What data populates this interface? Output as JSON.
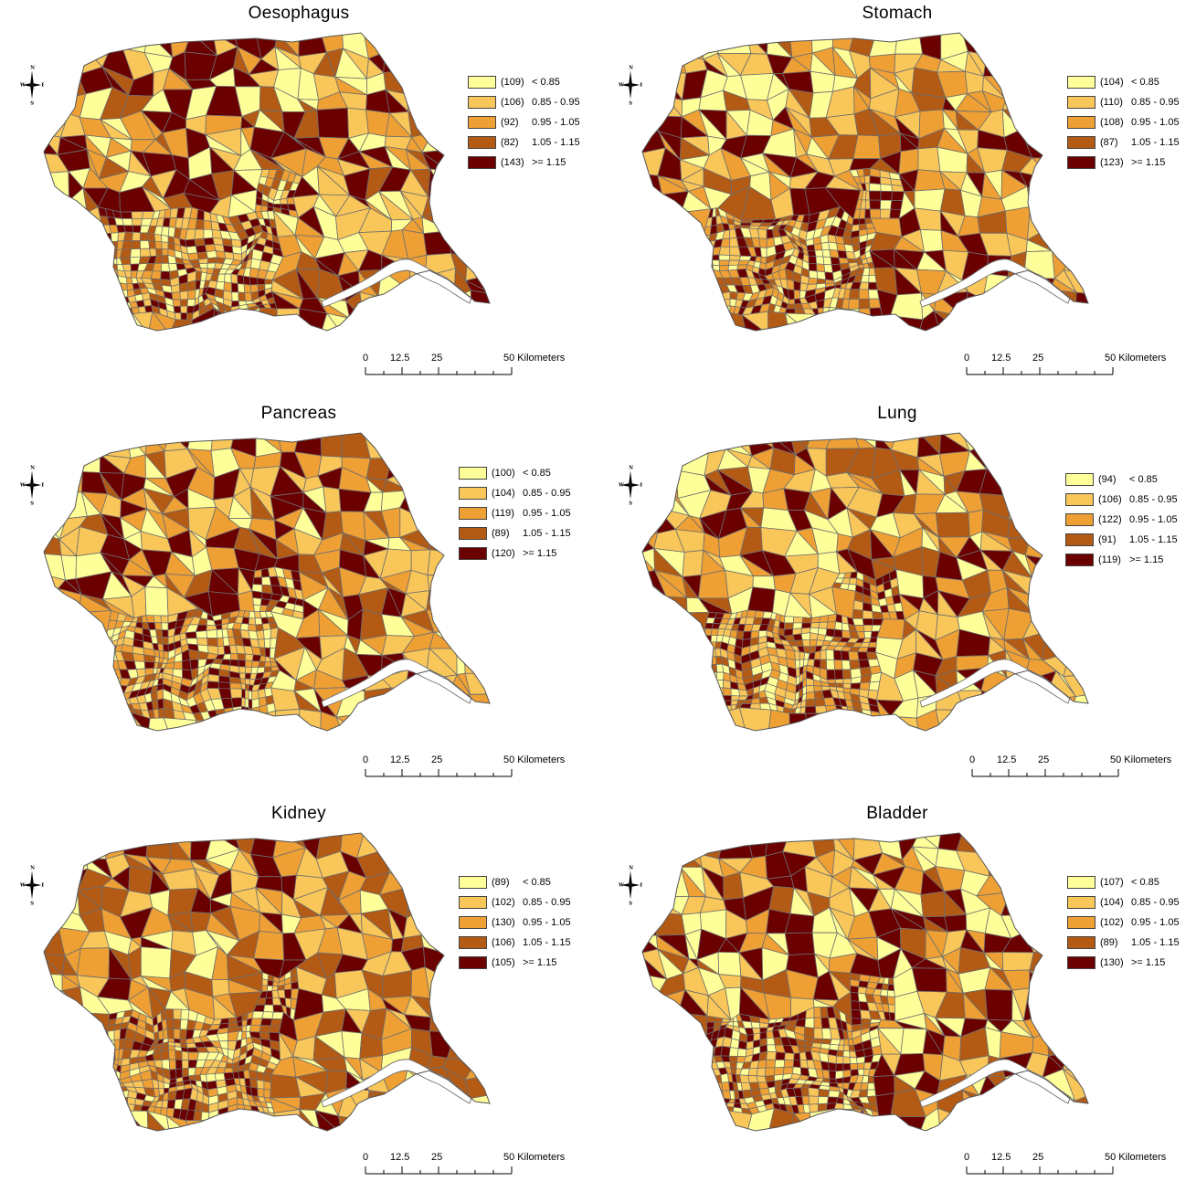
{
  "panels": [
    {
      "title": "Oesophagus",
      "legend": [
        {
          "count": "(109)",
          "range": "< 0.85",
          "color": "#ffff99"
        },
        {
          "count": "(106)",
          "range": "0.85 - 0.95",
          "color": "#f9c65a"
        },
        {
          "count": "(92)",
          "range": "0.95 - 1.05",
          "color": "#eea035"
        },
        {
          "count": "(82)",
          "range": "1.05 - 1.15",
          "color": "#b35a14"
        },
        {
          "count": "(143)",
          "range": ">= 1.15",
          "color": "#6b0000"
        }
      ]
    },
    {
      "title": "Stomach",
      "legend": [
        {
          "count": "(104)",
          "range": "< 0.85",
          "color": "#ffff99"
        },
        {
          "count": "(110)",
          "range": "0.85 - 0.95",
          "color": "#f9c65a"
        },
        {
          "count": "(108)",
          "range": "0.95 - 1.05",
          "color": "#eea035"
        },
        {
          "count": "(87)",
          "range": "1.05 - 1.15",
          "color": "#b35a14"
        },
        {
          "count": "(123)",
          "range": ">= 1.15",
          "color": "#6b0000"
        }
      ]
    },
    {
      "title": "Pancreas",
      "legend": [
        {
          "count": "(100)",
          "range": "< 0.85",
          "color": "#ffff99"
        },
        {
          "count": "(104)",
          "range": "0.85 - 0.95",
          "color": "#f9c65a"
        },
        {
          "count": "(119)",
          "range": "0.95 - 1.05",
          "color": "#eea035"
        },
        {
          "count": "(89)",
          "range": "1.05 - 1.15",
          "color": "#b35a14"
        },
        {
          "count": "(120)",
          "range": ">= 1.15",
          "color": "#6b0000"
        }
      ]
    },
    {
      "title": "Lung",
      "legend": [
        {
          "count": "(94)",
          "range": "< 0.85",
          "color": "#ffff99"
        },
        {
          "count": "(106)",
          "range": "0.85 - 0.95",
          "color": "#f9c65a"
        },
        {
          "count": "(122)",
          "range": "0.95 - 1.05",
          "color": "#eea035"
        },
        {
          "count": "(91)",
          "range": "1.05 - 1.15",
          "color": "#b35a14"
        },
        {
          "count": "(119)",
          "range": ">= 1.15",
          "color": "#6b0000"
        }
      ]
    },
    {
      "title": "Kidney",
      "legend": [
        {
          "count": "(89)",
          "range": "< 0.85",
          "color": "#ffff99"
        },
        {
          "count": "(102)",
          "range": "0.85 - 0.95",
          "color": "#f9c65a"
        },
        {
          "count": "(130)",
          "range": "0.95 - 1.05",
          "color": "#eea035"
        },
        {
          "count": "(106)",
          "range": "1.05 - 1.15",
          "color": "#b35a14"
        },
        {
          "count": "(105)",
          "range": ">= 1.15",
          "color": "#6b0000"
        }
      ]
    },
    {
      "title": "Bladder",
      "legend": [
        {
          "count": "(107)",
          "range": "< 0.85",
          "color": "#ffff99"
        },
        {
          "count": "(104)",
          "range": "0.85 - 0.95",
          "color": "#f9c65a"
        },
        {
          "count": "(102)",
          "range": "0.95 - 1.05",
          "color": "#eea035"
        },
        {
          "count": "(89)",
          "range": "1.05 - 1.15",
          "color": "#b35a14"
        },
        {
          "count": "(130)",
          "range": ">= 1.15",
          "color": "#6b0000"
        }
      ]
    }
  ],
  "compass": {
    "n": "N",
    "s": "S",
    "e": "E",
    "w": "W"
  },
  "scalebar": {
    "ticks": [
      "0",
      "12.5",
      "25",
      "50 Kilometers"
    ]
  },
  "colors": {
    "boundary": "#6e6e6e",
    "estuary": "#ffffff"
  }
}
